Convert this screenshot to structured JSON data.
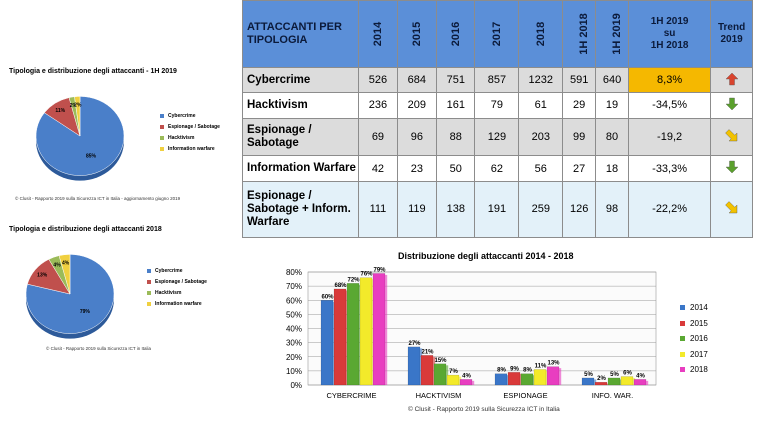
{
  "pie1": {
    "title": "Tipologia e distribuzione degli attaccanti - 1H 2019",
    "credit": "© Clusit - Rapporto 2019 sulla Sicurezza ICT in Italia - aggiornamento giugno 2019",
    "slices": [
      {
        "name": "Cybercrime",
        "value": 85,
        "label": "85%",
        "color": "#4a7fc9"
      },
      {
        "name": "Espionage / Sabotage",
        "value": 11,
        "label": "11%",
        "color": "#c0504d"
      },
      {
        "name": "Hacktivism",
        "value": 2,
        "label": "2%",
        "color": "#9bbb59"
      },
      {
        "name": "Information warfare",
        "value": 2,
        "label": "2%",
        "color": "#f0d040"
      }
    ]
  },
  "pie2": {
    "title": "Tipologia e distribuzione degli attaccanti 2018",
    "credit": "© Clusit - Rapporto 2019 sulla Sicurezza ICT in Italia",
    "slices": [
      {
        "name": "Cybercrime",
        "value": 79,
        "label": "79%",
        "color": "#4a7fc9"
      },
      {
        "name": "Espionage / Sabotage",
        "value": 13,
        "label": "13%",
        "color": "#c0504d"
      },
      {
        "name": "Hacktivism",
        "value": 4,
        "label": "4%",
        "color": "#9bbb59"
      },
      {
        "name": "Information warfare",
        "value": 4,
        "label": "4%",
        "color": "#f0d040"
      }
    ]
  },
  "table": {
    "header_label": "ATTACCANTI PER TIPOLOGIA",
    "years": [
      "2014",
      "2015",
      "2016",
      "2017",
      "2018",
      "1H 2018",
      "1H 2019"
    ],
    "change_header": [
      "1H 2019",
      "su",
      "1H 2018"
    ],
    "trend_header": [
      "Trend",
      "2019"
    ],
    "rows": [
      {
        "label": "Cybercrime",
        "values": [
          "526",
          "684",
          "751",
          "857",
          "1232",
          "591",
          "640"
        ],
        "change": "8,3%",
        "trend": "up"
      },
      {
        "label": "Hacktivism",
        "values": [
          "236",
          "209",
          "161",
          "79",
          "61",
          "29",
          "19"
        ],
        "change": "-34,5%",
        "trend": "down"
      },
      {
        "label": "Espionage / Sabotage",
        "values": [
          "69",
          "96",
          "88",
          "129",
          "203",
          "99",
          "80"
        ],
        "change": "-19,2",
        "trend": "diagonal"
      },
      {
        "label": "Information Warfare",
        "values": [
          "42",
          "23",
          "50",
          "62",
          "56",
          "27",
          "18"
        ],
        "change": "-33,3%",
        "trend": "down"
      },
      {
        "label": "Espionage / Sabotage + Inform. Warfare",
        "values": [
          "111",
          "119",
          "138",
          "191",
          "259",
          "126",
          "98"
        ],
        "change": "-22,2%",
        "trend": "diagonal"
      }
    ],
    "trend_colors": {
      "up": "#d9442e",
      "down": "#5aa02c",
      "diagonal": "#f2c200"
    }
  },
  "chart_data": {
    "type": "bar",
    "title": "Distribuzione degli attaccanti 2014 - 2018",
    "categories": [
      "CYBERCRIME",
      "HACKTIVISM",
      "ESPIONAGE",
      "INFO. WAR."
    ],
    "series": [
      {
        "name": "2014",
        "values": [
          60,
          27,
          8,
          5
        ],
        "color": "#3a76c8"
      },
      {
        "name": "2015",
        "values": [
          68,
          21,
          9,
          2
        ],
        "color": "#d93a3a"
      },
      {
        "name": "2016",
        "values": [
          72,
          15,
          8,
          5
        ],
        "color": "#5aa832"
      },
      {
        "name": "2017",
        "values": [
          76,
          7,
          11,
          6
        ],
        "color": "#f3ea2a"
      },
      {
        "name": "2018",
        "values": [
          79,
          4,
          13,
          4
        ],
        "color": "#e83ec0"
      }
    ],
    "ylim": [
      0,
      80
    ],
    "yticks": [
      "0%",
      "10%",
      "20%",
      "30%",
      "40%",
      "50%",
      "60%",
      "70%",
      "80%"
    ],
    "grid": true,
    "legend": "right",
    "credit": "© Clusit - Rapporto 2019 sulla Sicurezza ICT in Italia"
  }
}
